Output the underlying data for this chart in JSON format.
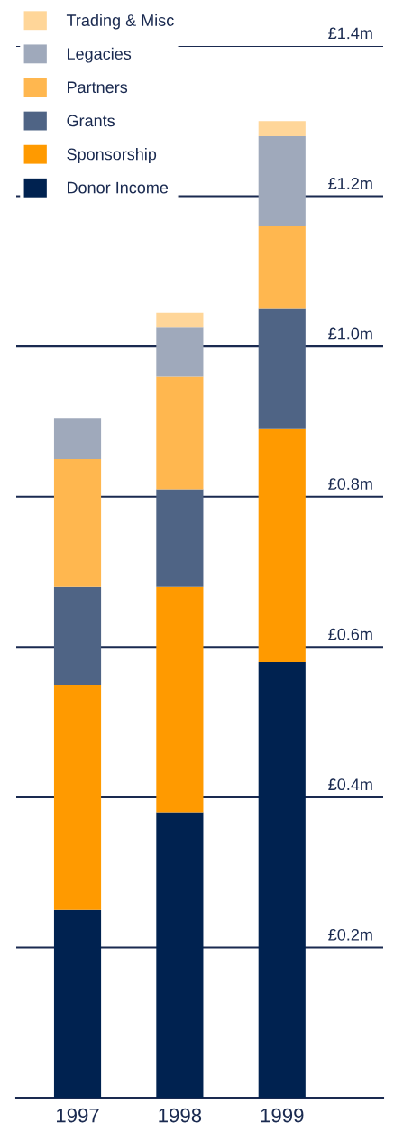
{
  "chart_data": {
    "type": "bar",
    "stacked": true,
    "categories": [
      "1997",
      "1998",
      "1999"
    ],
    "series": [
      {
        "name": "Donor Income",
        "color": "#002250",
        "values": [
          0.25,
          0.38,
          0.58
        ]
      },
      {
        "name": "Sponsorship",
        "color": "#ff9a00",
        "values": [
          0.3,
          0.3,
          0.31
        ]
      },
      {
        "name": "Grants",
        "color": "#4f6485",
        "values": [
          0.13,
          0.13,
          0.16
        ]
      },
      {
        "name": "Partners",
        "color": "#ffb74f",
        "values": [
          0.17,
          0.15,
          0.11
        ]
      },
      {
        "name": "Legacies",
        "color": "#9fa9bb",
        "values": [
          0.055,
          0.065,
          0.12
        ]
      },
      {
        "name": "Trading & Misc",
        "color": "#ffd699",
        "values": [
          0,
          0.02,
          0.02
        ]
      }
    ],
    "ylim": [
      0,
      1.4
    ],
    "yticks": [
      {
        "value": 0.2,
        "label": "£0.2m"
      },
      {
        "value": 0.4,
        "label": "£0.4m"
      },
      {
        "value": 0.6,
        "label": "£0.6m"
      },
      {
        "value": 0.8,
        "label": "£0.8m"
      },
      {
        "value": 1.0,
        "label": "£1.0m"
      },
      {
        "value": 1.2,
        "label": "£1.2m"
      },
      {
        "value": 1.4,
        "label": "£1.4m"
      }
    ],
    "grid": "y",
    "legend": "top left"
  }
}
